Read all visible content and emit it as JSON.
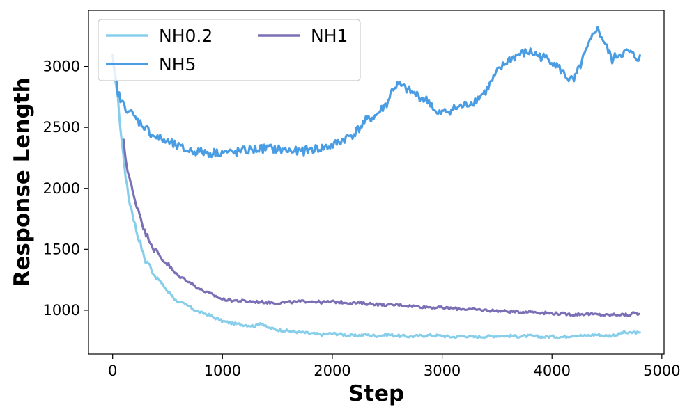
{
  "chart_data": {
    "type": "line",
    "title": "",
    "xlabel": "Step",
    "ylabel": "Response Length",
    "xlim": [
      -220,
      5020
    ],
    "ylim": [
      640,
      3460
    ],
    "xticks": [
      0,
      1000,
      2000,
      3000,
      4000,
      5000
    ],
    "yticks": [
      1000,
      1500,
      2000,
      2500,
      3000
    ],
    "grid": false,
    "legend": {
      "location": "upper-left",
      "columns": 2
    },
    "series": [
      {
        "name": "NH0.2",
        "color": "#87ceeb",
        "x": [
          0,
          25,
          50,
          75,
          100,
          125,
          150,
          175,
          200,
          225,
          250,
          275,
          300,
          325,
          350,
          375,
          400,
          425,
          450,
          475,
          500,
          525,
          550,
          575,
          600,
          650,
          700,
          750,
          800,
          850,
          900,
          950,
          1000,
          1100,
          1200,
          1300,
          1350,
          1400,
          1500,
          1600,
          1700,
          1800,
          1900,
          2000,
          2100,
          2200,
          2300,
          2400,
          2500,
          2600,
          2700,
          2800,
          2900,
          3000,
          3100,
          3200,
          3300,
          3400,
          3500,
          3600,
          3700,
          3800,
          3900,
          4000,
          4100,
          4200,
          4300,
          4400,
          4500,
          4600,
          4650,
          4700,
          4750,
          4800
        ],
        "y": [
          3020,
          2900,
          2720,
          2450,
          2250,
          2050,
          1900,
          1820,
          1720,
          1620,
          1560,
          1470,
          1400,
          1390,
          1340,
          1300,
          1260,
          1250,
          1210,
          1190,
          1150,
          1140,
          1110,
          1080,
          1070,
          1050,
          1030,
          1000,
          980,
          970,
          950,
          930,
          910,
          890,
          880,
          870,
          900,
          860,
          840,
          830,
          820,
          810,
          800,
          810,
          800,
          790,
          800,
          790,
          800,
          790,
          785,
          790,
          795,
          790,
          780,
          790,
          780,
          785,
          790,
          790,
          785,
          790,
          780,
          785,
          780,
          795,
          790,
          800,
          790,
          800,
          820,
          810,
          820,
          810
        ]
      },
      {
        "name": "NH1",
        "color": "#7b6fb5",
        "x": [
          100,
          125,
          150,
          175,
          200,
          225,
          250,
          275,
          300,
          325,
          350,
          375,
          400,
          425,
          450,
          475,
          500,
          525,
          550,
          575,
          600,
          650,
          700,
          750,
          800,
          850,
          900,
          950,
          1000,
          1100,
          1200,
          1300,
          1400,
          1500,
          1600,
          1700,
          1800,
          1900,
          2000,
          2100,
          2200,
          2300,
          2400,
          2500,
          2600,
          2700,
          2800,
          2900,
          3000,
          3100,
          3200,
          3300,
          3400,
          3500,
          3600,
          3700,
          3800,
          3900,
          4000,
          4100,
          4200,
          4300,
          4400,
          4500,
          4600,
          4700,
          4750,
          4800
        ],
        "y": [
          2380,
          2200,
          2100,
          2000,
          1900,
          1850,
          1780,
          1700,
          1620,
          1600,
          1550,
          1500,
          1480,
          1450,
          1420,
          1400,
          1380,
          1350,
          1320,
          1300,
          1280,
          1260,
          1230,
          1200,
          1170,
          1150,
          1130,
          1110,
          1090,
          1080,
          1075,
          1070,
          1065,
          1060,
          1065,
          1070,
          1075,
          1065,
          1070,
          1065,
          1060,
          1055,
          1050,
          1040,
          1045,
          1035,
          1030,
          1025,
          1020,
          1015,
          1010,
          1005,
          1000,
          995,
          990,
          985,
          990,
          980,
          975,
          970,
          965,
          970,
          965,
          960,
          965,
          960,
          980,
          965
        ]
      },
      {
        "name": "NH5",
        "color": "#4b9de3",
        "x": [
          0,
          25,
          50,
          75,
          100,
          150,
          200,
          250,
          300,
          350,
          400,
          450,
          500,
          550,
          600,
          650,
          700,
          800,
          900,
          1000,
          1100,
          1200,
          1300,
          1400,
          1500,
          1600,
          1700,
          1800,
          1900,
          2000,
          2100,
          2200,
          2300,
          2400,
          2500,
          2550,
          2600,
          2700,
          2800,
          2900,
          2950,
          3000,
          3100,
          3200,
          3300,
          3400,
          3500,
          3600,
          3700,
          3800,
          3900,
          4000,
          4100,
          4150,
          4200,
          4300,
          4350,
          4400,
          4450,
          4500,
          4550,
          4600,
          4700,
          4750,
          4800
        ],
        "y": [
          3060,
          2900,
          2780,
          2720,
          2680,
          2640,
          2580,
          2540,
          2500,
          2450,
          2420,
          2400,
          2380,
          2360,
          2340,
          2320,
          2310,
          2300,
          2290,
          2300,
          2290,
          2310,
          2320,
          2330,
          2320,
          2310,
          2300,
          2320,
          2330,
          2350,
          2400,
          2450,
          2550,
          2600,
          2700,
          2820,
          2850,
          2800,
          2750,
          2700,
          2600,
          2620,
          2650,
          2680,
          2720,
          2800,
          2950,
          3050,
          3100,
          3120,
          3080,
          3050,
          2950,
          2900,
          2880,
          3100,
          3200,
          3320,
          3250,
          3150,
          3050,
          3100,
          3120,
          3080,
          3070
        ]
      }
    ]
  }
}
